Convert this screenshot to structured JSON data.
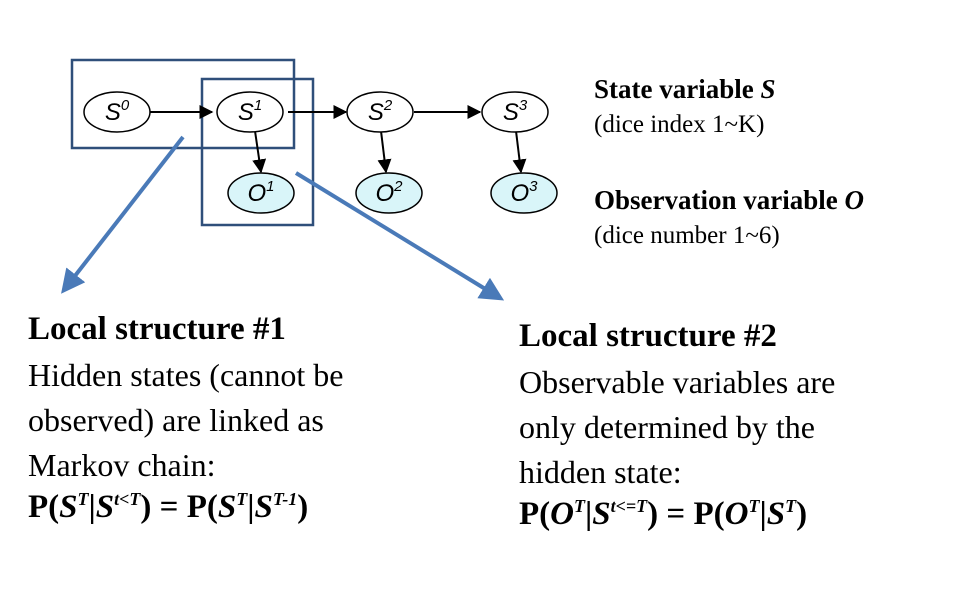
{
  "nodes": {
    "s0": {
      "base": "S",
      "sup": "0"
    },
    "s1": {
      "base": "S",
      "sup": "1"
    },
    "s2": {
      "base": "S",
      "sup": "2"
    },
    "s3": {
      "base": "S",
      "sup": "3"
    },
    "o1": {
      "base": "O",
      "sup": "1"
    },
    "o2": {
      "base": "O",
      "sup": "2"
    },
    "o3": {
      "base": "O",
      "sup": "3"
    }
  },
  "legend": {
    "state_title": "State variable ",
    "state_var": "S",
    "state_sub": "(dice index 1~K)",
    "obs_title": "Observation variable ",
    "obs_var": "O",
    "obs_sub": "(dice number 1~6)"
  },
  "local1": {
    "title": "Local structure #1",
    "lines": [
      "Hidden states (cannot be",
      "observed) are linked as",
      "Markov chain:"
    ],
    "formula": {
      "p1": "P(",
      "a": "S",
      "a_sup": "T",
      "bar1": "|",
      "b": "S",
      "b_sup": "t<T",
      "mid": ") = P(",
      "c": "S",
      "c_sup": "T",
      "bar2": "|",
      "d": "S",
      "d_sup": "T-1",
      "end": ")"
    }
  },
  "local2": {
    "title": "Local structure #2",
    "lines": [
      "Observable variables are",
      "only determined by the",
      "hidden state:"
    ],
    "formula": {
      "p1": "P(",
      "a": "O",
      "a_sup": "T",
      "bar1": "|",
      "b": "S",
      "b_sup": "t<=T",
      "mid": ") = P(",
      "c": "O",
      "c_sup": "T",
      "bar2": "|",
      "d": "S",
      "d_sup": "T",
      "end": ")"
    }
  },
  "colors": {
    "frame": "#2f4f7a",
    "pointer": "#4a7ab8",
    "observed_fill": "#d9f5f9"
  }
}
